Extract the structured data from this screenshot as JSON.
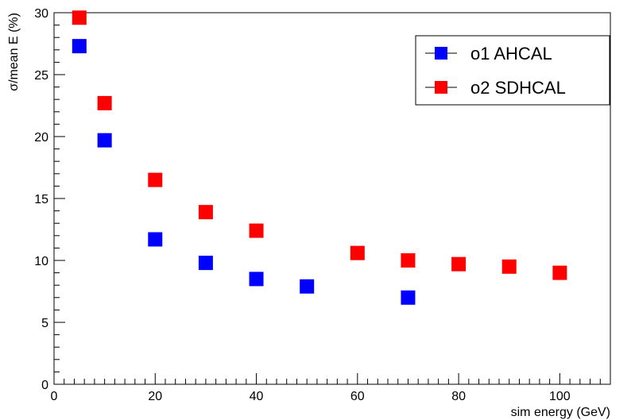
{
  "chart_data": {
    "type": "scatter",
    "xlabel": "sim energy (GeV)",
    "ylabel": "σ/mean E (%)",
    "xlim": [
      0,
      110
    ],
    "ylim": [
      0,
      30
    ],
    "x_ticks": [
      0,
      20,
      40,
      60,
      80,
      100
    ],
    "y_ticks": [
      0,
      5,
      10,
      15,
      20,
      25,
      30
    ],
    "x_tick_labels": [
      "0",
      "20",
      "40",
      "60",
      "80",
      "100"
    ],
    "y_tick_labels": [
      "0",
      "5",
      "10",
      "15",
      "20",
      "25",
      "30"
    ],
    "grid": false,
    "legend_position": "top-right",
    "series": [
      {
        "name": "o1 AHCAL",
        "color": "#0000ff",
        "marker": "square",
        "points": [
          {
            "x": 5,
            "y": 27.3
          },
          {
            "x": 10,
            "y": 19.7
          },
          {
            "x": 20,
            "y": 11.7
          },
          {
            "x": 30,
            "y": 9.8
          },
          {
            "x": 40,
            "y": 8.5
          },
          {
            "x": 50,
            "y": 7.9
          },
          {
            "x": 70,
            "y": 7.0
          }
        ]
      },
      {
        "name": "o2 SDHCAL",
        "color": "#ff0000",
        "marker": "square",
        "points": [
          {
            "x": 5,
            "y": 29.6
          },
          {
            "x": 10,
            "y": 22.7
          },
          {
            "x": 20,
            "y": 16.5
          },
          {
            "x": 30,
            "y": 13.9
          },
          {
            "x": 40,
            "y": 12.4
          },
          {
            "x": 60,
            "y": 10.6
          },
          {
            "x": 70,
            "y": 10.0
          },
          {
            "x": 80,
            "y": 9.7
          },
          {
            "x": 90,
            "y": 9.5
          },
          {
            "x": 100,
            "y": 9.0
          }
        ]
      }
    ]
  }
}
